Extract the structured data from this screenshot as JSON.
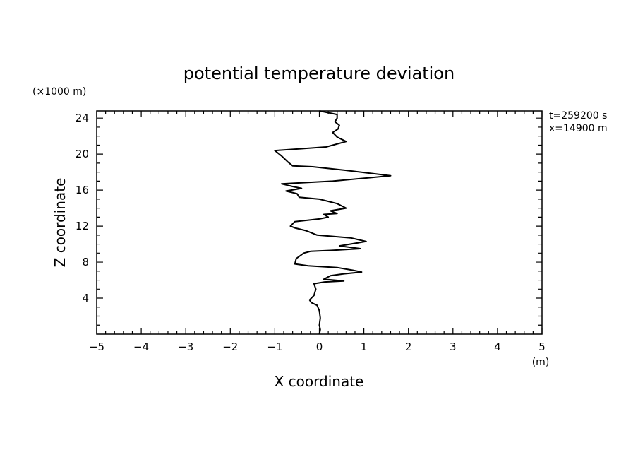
{
  "chart_data": {
    "type": "line",
    "title": "potential temperature deviation",
    "xlabel": "X coordinate",
    "ylabel": "Z coordinate",
    "x_unit": "(m)",
    "y_unit": "(×1000 m)",
    "annotations": [
      "t=259200 s",
      "x=14900 m"
    ],
    "xlim": [
      -5,
      5
    ],
    "ylim": [
      0,
      24.8
    ],
    "xticks": [
      -5,
      -4,
      -3,
      -2,
      -1,
      0,
      1,
      2,
      3,
      4,
      5
    ],
    "xtick_labels": [
      "−5",
      "−4",
      "−3",
      "−2",
      "−1",
      "0",
      "1",
      "2",
      "3",
      "4",
      "5"
    ],
    "yticks": [
      4,
      8,
      12,
      16,
      20,
      24
    ],
    "ytick_labels": [
      "4",
      "8",
      "12",
      "16",
      "20",
      "24"
    ],
    "grid": false,
    "series": [
      {
        "points": [
          [
            0.0,
            0.0
          ],
          [
            0.02,
            0.5
          ],
          [
            0.0,
            1.0
          ],
          [
            0.02,
            1.8
          ],
          [
            0.0,
            2.6
          ],
          [
            -0.05,
            3.2
          ],
          [
            -0.18,
            3.5
          ],
          [
            -0.22,
            3.8
          ],
          [
            -0.12,
            4.3
          ],
          [
            -0.08,
            5.0
          ],
          [
            -0.12,
            5.6
          ],
          [
            0.12,
            5.8
          ],
          [
            0.55,
            5.9
          ],
          [
            0.1,
            6.1
          ],
          [
            0.25,
            6.5
          ],
          [
            0.55,
            6.7
          ],
          [
            0.95,
            6.9
          ],
          [
            0.75,
            7.1
          ],
          [
            0.4,
            7.4
          ],
          [
            -0.25,
            7.6
          ],
          [
            -0.55,
            7.8
          ],
          [
            -0.52,
            8.4
          ],
          [
            -0.35,
            9.0
          ],
          [
            -0.2,
            9.2
          ],
          [
            0.25,
            9.3
          ],
          [
            0.92,
            9.5
          ],
          [
            0.45,
            9.8
          ],
          [
            1.05,
            10.3
          ],
          [
            0.7,
            10.7
          ],
          [
            -0.05,
            11.0
          ],
          [
            -0.3,
            11.5
          ],
          [
            -0.55,
            11.8
          ],
          [
            -0.65,
            12.0
          ],
          [
            -0.55,
            12.5
          ],
          [
            0.0,
            12.8
          ],
          [
            0.2,
            13.0
          ],
          [
            0.1,
            13.3
          ],
          [
            0.4,
            13.4
          ],
          [
            0.25,
            13.7
          ],
          [
            0.6,
            14.0
          ],
          [
            0.4,
            14.5
          ],
          [
            0.0,
            15.0
          ],
          [
            -0.45,
            15.2
          ],
          [
            -0.5,
            15.6
          ],
          [
            -0.75,
            15.9
          ],
          [
            -0.4,
            16.2
          ],
          [
            -0.6,
            16.4
          ],
          [
            -0.85,
            16.7
          ],
          [
            0.3,
            17.0
          ],
          [
            1.6,
            17.6
          ],
          [
            0.6,
            18.2
          ],
          [
            -0.15,
            18.6
          ],
          [
            -0.6,
            18.7
          ],
          [
            -0.7,
            19.1
          ],
          [
            -0.85,
            19.8
          ],
          [
            -1.0,
            20.4
          ],
          [
            -0.4,
            20.6
          ],
          [
            0.15,
            20.8
          ],
          [
            0.6,
            21.4
          ],
          [
            0.4,
            21.9
          ],
          [
            0.3,
            22.4
          ],
          [
            0.42,
            22.8
          ],
          [
            0.45,
            23.2
          ],
          [
            0.35,
            23.6
          ],
          [
            0.4,
            24.0
          ],
          [
            0.4,
            24.4
          ],
          [
            0.2,
            24.6
          ],
          [
            0.0,
            24.8
          ]
        ]
      }
    ]
  }
}
